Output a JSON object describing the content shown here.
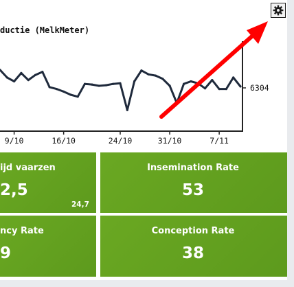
{
  "chart_data": {
    "type": "line",
    "title": "ductie (MelkMeter)",
    "xlabel": "",
    "ylabel": "",
    "x_ticks": [
      "9/10",
      "16/10",
      "24/10",
      "31/10",
      "7/11"
    ],
    "series": [
      {
        "values": [
          6330,
          6318,
          6312,
          6325,
          6314,
          6322,
          6327,
          6303,
          6300,
          6296,
          6291,
          6288,
          6308,
          6307,
          6305,
          6306,
          6308,
          6309,
          6267,
          6312,
          6329,
          6323,
          6321,
          6316,
          6305,
          6278,
          6308,
          6312,
          6309,
          6301,
          6314,
          6300,
          6300,
          6318,
          6304
        ]
      }
    ],
    "end_label": "6304",
    "ylim": [
      6235,
      6375
    ],
    "line_color": "#1f2a3c"
  },
  "toolbar": {
    "gear_icon": "gear-icon"
  },
  "annotation": {
    "arrow_color": "#ff0000",
    "arrow_icon": "red-arrow"
  },
  "tiles": [
    {
      "title": "ijd vaarzen",
      "value": "2,5",
      "sub": "24,7"
    },
    {
      "title": "Insemination Rate",
      "value": "53"
    },
    {
      "title": "ncy Rate",
      "value": "9"
    },
    {
      "title": "Conception Rate",
      "value": "38"
    }
  ],
  "colors": {
    "tile_green": "#64a21f",
    "axis": "#222222",
    "background": "#e9ebee"
  }
}
